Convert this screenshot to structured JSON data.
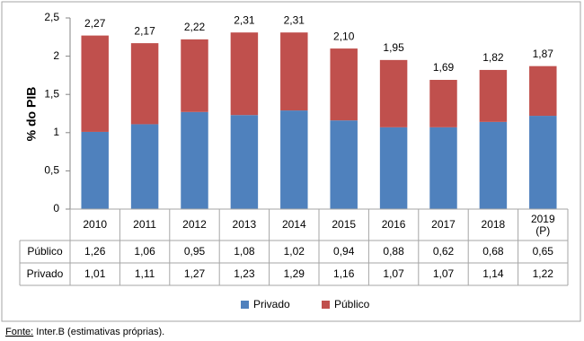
{
  "chart_data": {
    "type": "stacked_bar",
    "y_label": "% do PIB",
    "categories": [
      "2010",
      "2011",
      "2012",
      "2013",
      "2014",
      "2015",
      "2016",
      "2017",
      "2018",
      "2019\n(P)"
    ],
    "series": [
      {
        "name": "Privado",
        "color": "#4f81bd",
        "values": [
          1.01,
          1.11,
          1.27,
          1.23,
          1.29,
          1.16,
          1.07,
          1.07,
          1.14,
          1.22
        ],
        "value_labels": [
          "1,01",
          "1,11",
          "1,27",
          "1,23",
          "1,29",
          "1,16",
          "1,07",
          "1,07",
          "1,14",
          "1,22"
        ]
      },
      {
        "name": "Público",
        "color": "#c0504d",
        "values": [
          1.26,
          1.06,
          0.95,
          1.08,
          1.02,
          0.94,
          0.88,
          0.62,
          0.68,
          0.65
        ],
        "value_labels": [
          "1,26",
          "1,06",
          "0,95",
          "1,08",
          "1,02",
          "0,94",
          "0,88",
          "0,62",
          "0,68",
          "0,65"
        ]
      }
    ],
    "totals": [
      2.27,
      2.17,
      2.22,
      2.31,
      2.31,
      2.1,
      1.95,
      1.69,
      1.82,
      1.87
    ],
    "total_labels": [
      "2,27",
      "2,17",
      "2,22",
      "2,31",
      "2,31",
      "2,10",
      "1,95",
      "1,69",
      "1,82",
      "1,87"
    ],
    "ylim": [
      0,
      2.5
    ],
    "yticks": [
      0,
      {
        "value": 0.5,
        "label": "0,5"
      },
      1,
      {
        "value": 1.5,
        "label": "1,5"
      },
      2,
      {
        "value": 2.5,
        "label": "2,5"
      }
    ],
    "grid": false,
    "legend": "bottom",
    "source_label": "Fonte:",
    "source": "Inter.B (estimativas próprias)."
  }
}
